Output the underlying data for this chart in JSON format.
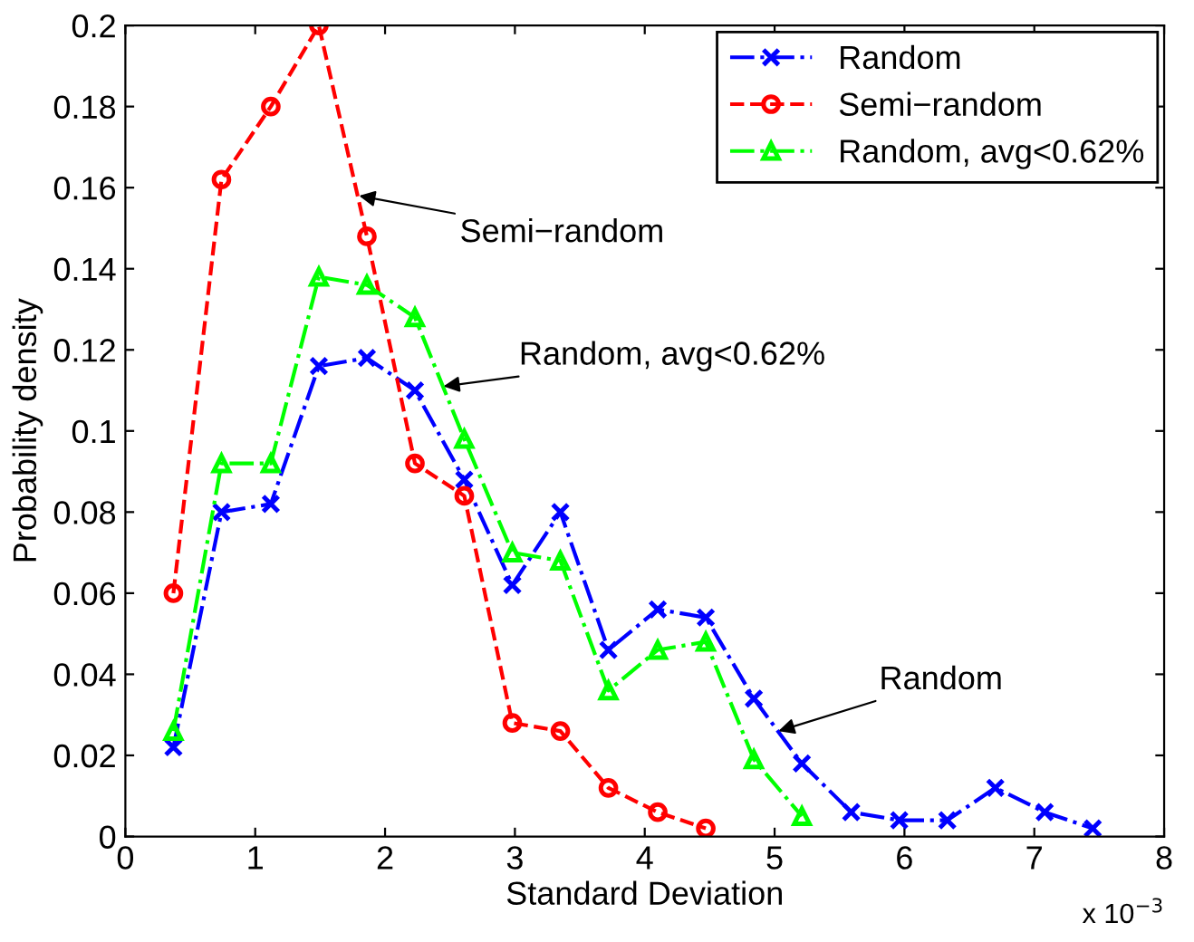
{
  "chart_data": {
    "type": "line",
    "xlabel": "Standard Deviation",
    "ylabel": "Probability density",
    "xlim": [
      0,
      8
    ],
    "xticks": [
      0,
      1,
      2,
      3,
      4,
      5,
      6,
      7,
      8
    ],
    "ylim": [
      0,
      0.2
    ],
    "yticks": [
      0,
      0.02,
      0.04,
      0.06,
      0.08,
      0.1,
      0.12,
      0.14,
      0.16,
      0.18,
      0.2
    ],
    "grid": false,
    "legend": "top right",
    "series": [
      {
        "name": "Random",
        "color": "#0000ff",
        "marker": "cross",
        "line_style": "dashdot",
        "x": [
          0.37,
          0.74,
          1.12,
          1.49,
          1.86,
          2.23,
          2.61,
          2.98,
          3.35,
          3.72,
          4.1,
          4.47,
          4.84,
          5.21,
          5.59,
          5.96,
          6.33,
          6.7,
          7.08,
          7.45
        ],
        "values": [
          0.022,
          0.08,
          0.082,
          0.116,
          0.118,
          0.11,
          0.088,
          0.062,
          0.08,
          0.046,
          0.056,
          0.054,
          0.034,
          0.018,
          0.006,
          0.004,
          0.004,
          0.012,
          0.006,
          0.002
        ]
      },
      {
        "name": "Semi−random",
        "color": "#ff0000",
        "marker": "circle",
        "line_style": "dashed",
        "x": [
          0.37,
          0.74,
          1.12,
          1.49,
          1.86,
          2.23,
          2.61,
          2.98,
          3.35,
          3.72,
          4.1,
          4.47
        ],
        "values": [
          0.06,
          0.162,
          0.18,
          0.2,
          0.148,
          0.092,
          0.084,
          0.028,
          0.026,
          0.012,
          0.006,
          0.002
        ]
      },
      {
        "name": "Random, avg<0.62%",
        "color": "#00ff00",
        "marker": "triangle",
        "line_style": "dashdot",
        "x": [
          0.37,
          0.74,
          1.12,
          1.49,
          1.86,
          2.23,
          2.61,
          2.98,
          3.35,
          3.72,
          4.1,
          4.47,
          4.84,
          5.21
        ],
        "values": [
          0.026,
          0.092,
          0.092,
          0.138,
          0.136,
          0.128,
          0.098,
          0.07,
          0.068,
          0.036,
          0.046,
          0.048,
          0.019,
          0.005
        ]
      }
    ],
    "annotations": [
      {
        "text": "Semi−random",
        "x": 1.8,
        "y": 0.158
      },
      {
        "text": "Random, avg<0.62%",
        "x": 2.45,
        "y": 0.111
      },
      {
        "text": "Random",
        "x": 5.03,
        "y": 0.026
      },
      "x 10$^{−3}$"
    ]
  }
}
